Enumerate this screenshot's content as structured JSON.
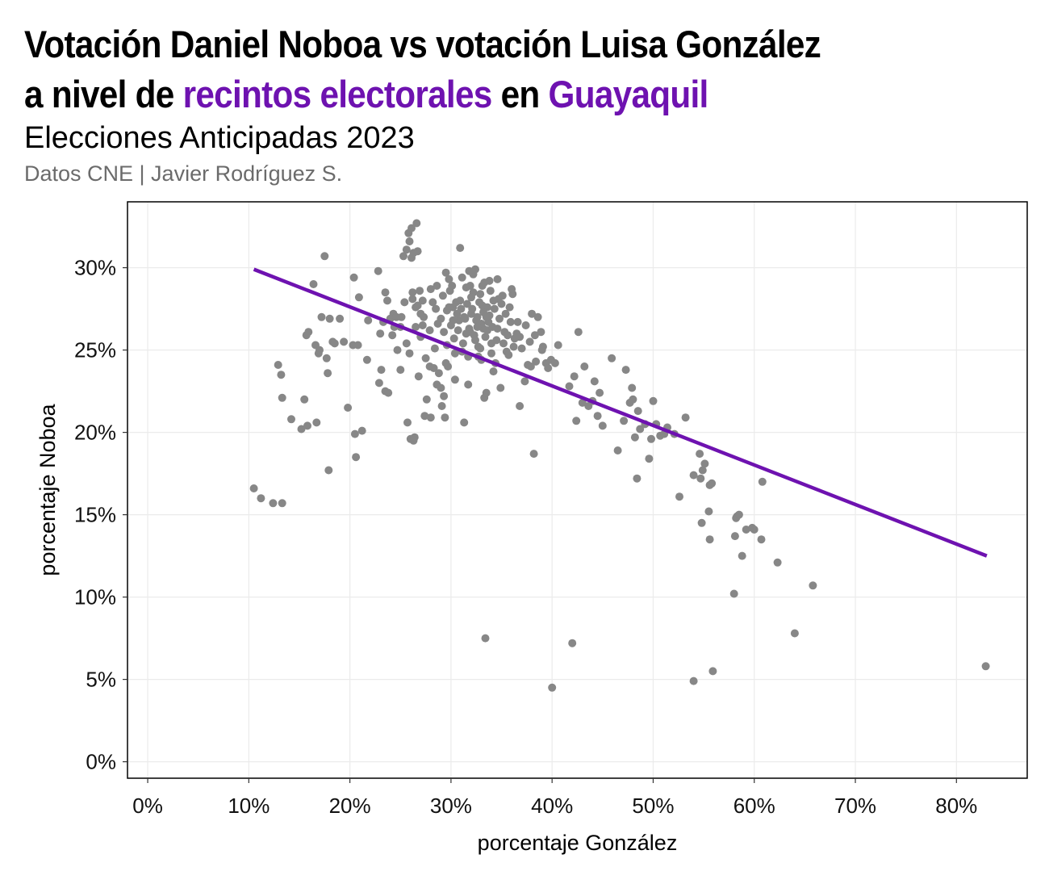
{
  "header": {
    "title_line1": "Votación Daniel Noboa vs votación Luisa González",
    "title_line2_a": "a nivel de ",
    "title_line2_b": "recintos electorales",
    "title_line2_c": " en ",
    "title_line2_d": "Guayaquil",
    "subtitle": "Elecciones Anticipadas 2023",
    "caption": "Datos CNE | Javier Rodríguez S."
  },
  "colors": {
    "accent": "#6e12b0",
    "points": "#878787",
    "grid": "#ebebeb",
    "caption": "#6b6b6b"
  },
  "chart_data": {
    "type": "scatter",
    "title": "Votación Daniel Noboa vs votación Luisa González a nivel de recintos electorales en Guayaquil",
    "subtitle": "Elecciones Anticipadas 2023",
    "xlabel": "porcentaje González",
    "ylabel": "porcentaje Noboa",
    "xlim": [
      -2,
      87
    ],
    "ylim": [
      -1,
      34
    ],
    "x_ticks": [
      0,
      10,
      20,
      30,
      40,
      50,
      60,
      70,
      80
    ],
    "y_ticks": [
      0,
      5,
      10,
      15,
      20,
      25,
      30
    ],
    "x_tick_labels": [
      "0%",
      "10%",
      "20%",
      "30%",
      "40%",
      "50%",
      "60%",
      "70%",
      "80%"
    ],
    "y_tick_labels": [
      "0%",
      "5%",
      "10%",
      "15%",
      "20%",
      "25%",
      "30%"
    ],
    "grid": true,
    "trend_line": {
      "x": [
        10.5,
        83
      ],
      "y": [
        29.9,
        12.5
      ]
    },
    "points": [
      [
        10.5,
        16.6
      ],
      [
        11.2,
        16.0
      ],
      [
        12.4,
        15.7
      ],
      [
        13.3,
        15.7
      ],
      [
        12.9,
        24.1
      ],
      [
        13.2,
        23.5
      ],
      [
        13.3,
        22.1
      ],
      [
        14.2,
        20.8
      ],
      [
        15.2,
        20.2
      ],
      [
        15.5,
        22.0
      ],
      [
        15.8,
        20.4
      ],
      [
        15.7,
        25.9
      ],
      [
        15.9,
        26.1
      ],
      [
        16.4,
        29.0
      ],
      [
        16.6,
        25.3
      ],
      [
        16.7,
        20.6
      ],
      [
        16.9,
        24.8
      ],
      [
        17.0,
        25.0
      ],
      [
        17.2,
        27.0
      ],
      [
        17.5,
        30.7
      ],
      [
        17.7,
        24.5
      ],
      [
        17.8,
        23.6
      ],
      [
        17.9,
        17.7
      ],
      [
        18.0,
        26.9
      ],
      [
        18.3,
        25.5
      ],
      [
        18.5,
        25.4
      ],
      [
        19.0,
        26.9
      ],
      [
        19.4,
        25.5
      ],
      [
        19.8,
        21.5
      ],
      [
        20.3,
        25.3
      ],
      [
        20.4,
        29.4
      ],
      [
        20.5,
        19.9
      ],
      [
        20.6,
        18.5
      ],
      [
        20.8,
        25.3
      ],
      [
        20.9,
        28.2
      ],
      [
        21.2,
        20.1
      ],
      [
        21.7,
        24.4
      ],
      [
        21.8,
        26.8
      ],
      [
        22.8,
        29.8
      ],
      [
        22.9,
        23.0
      ],
      [
        23.1,
        23.8
      ],
      [
        23.5,
        28.5
      ],
      [
        23.5,
        22.5
      ],
      [
        23.8,
        22.4
      ],
      [
        23.7,
        28.0
      ],
      [
        23.3,
        26.7
      ],
      [
        24.0,
        26.9
      ],
      [
        24.4,
        26.4
      ],
      [
        24.3,
        27.2
      ],
      [
        24.7,
        25.0
      ],
      [
        25.0,
        23.8
      ],
      [
        25.1,
        27.0
      ],
      [
        25.3,
        30.7
      ],
      [
        25.6,
        31.1
      ],
      [
        25.8,
        32.1
      ],
      [
        25.9,
        31.6
      ],
      [
        26.1,
        32.4
      ],
      [
        26.6,
        32.7
      ],
      [
        26.1,
        30.6
      ],
      [
        26.7,
        31.0
      ],
      [
        26.3,
        30.9
      ],
      [
        25.6,
        25.4
      ],
      [
        25.9,
        24.8
      ],
      [
        25.7,
        20.6
      ],
      [
        26.0,
        19.6
      ],
      [
        26.3,
        19.5
      ],
      [
        26.4,
        19.7
      ],
      [
        26.2,
        28.1
      ],
      [
        26.5,
        27.6
      ],
      [
        26.2,
        28.5
      ],
      [
        26.8,
        23.4
      ],
      [
        27.0,
        27.2
      ],
      [
        27.2,
        26.5
      ],
      [
        27.4,
        21.0
      ],
      [
        27.6,
        22.0
      ],
      [
        27.5,
        24.5
      ],
      [
        27.9,
        24.0
      ],
      [
        28.0,
        20.9
      ],
      [
        28.3,
        23.9
      ],
      [
        28.6,
        22.9
      ],
      [
        28.8,
        23.6
      ],
      [
        29.0,
        22.7
      ],
      [
        29.3,
        22.2
      ],
      [
        29.1,
        21.6
      ],
      [
        29.4,
        20.9
      ],
      [
        29.5,
        29.7
      ],
      [
        29.6,
        25.3
      ],
      [
        29.7,
        24.0
      ],
      [
        29.9,
        28.6
      ],
      [
        30.1,
        28.9
      ],
      [
        30.2,
        27.6
      ],
      [
        30.4,
        23.2
      ],
      [
        30.7,
        26.2
      ],
      [
        30.9,
        31.2
      ],
      [
        31.1,
        24.9
      ],
      [
        31.3,
        20.6
      ],
      [
        31.5,
        28.8
      ],
      [
        31.7,
        22.9
      ],
      [
        31.9,
        26.1
      ],
      [
        32.0,
        27.2
      ],
      [
        32.2,
        28.5
      ],
      [
        32.4,
        29.9
      ],
      [
        32.6,
        27.0
      ],
      [
        32.7,
        24.6
      ],
      [
        32.9,
        25.1
      ],
      [
        33.1,
        28.9
      ],
      [
        33.2,
        26.3
      ],
      [
        33.3,
        22.1
      ],
      [
        33.4,
        7.5
      ],
      [
        33.5,
        22.4
      ],
      [
        33.6,
        27.6
      ],
      [
        33.8,
        29.2
      ],
      [
        34.0,
        24.8
      ],
      [
        34.2,
        23.7
      ],
      [
        34.4,
        24.2
      ],
      [
        34.6,
        29.3
      ],
      [
        34.7,
        28.1
      ],
      [
        34.9,
        22.7
      ],
      [
        35.2,
        25.4
      ],
      [
        35.5,
        24.9
      ],
      [
        35.8,
        27.6
      ],
      [
        36.1,
        28.4
      ],
      [
        36.3,
        25.7
      ],
      [
        36.6,
        26.7
      ],
      [
        36.8,
        21.6
      ],
      [
        37.0,
        25.1
      ],
      [
        37.3,
        23.1
      ],
      [
        37.6,
        24.1
      ],
      [
        37.8,
        25.5
      ],
      [
        38.0,
        27.2
      ],
      [
        38.2,
        18.7
      ],
      [
        38.4,
        24.3
      ],
      [
        38.6,
        27.0
      ],
      [
        38.9,
        26.1
      ],
      [
        39.1,
        25.2
      ],
      [
        39.4,
        24.2
      ],
      [
        39.6,
        23.9
      ],
      [
        39.9,
        24.4
      ],
      [
        40.0,
        4.5
      ],
      [
        40.6,
        25.3
      ],
      [
        41.7,
        22.8
      ],
      [
        42.0,
        7.2
      ],
      [
        42.2,
        23.4
      ],
      [
        42.4,
        20.7
      ],
      [
        42.6,
        26.1
      ],
      [
        43.0,
        21.8
      ],
      [
        43.2,
        24.0
      ],
      [
        43.6,
        21.6
      ],
      [
        44.0,
        21.9
      ],
      [
        44.2,
        23.1
      ],
      [
        44.5,
        21.0
      ],
      [
        44.7,
        22.4
      ],
      [
        45.0,
        20.4
      ],
      [
        45.9,
        24.5
      ],
      [
        46.5,
        18.9
      ],
      [
        47.1,
        20.7
      ],
      [
        47.3,
        23.8
      ],
      [
        47.7,
        21.8
      ],
      [
        47.9,
        22.7
      ],
      [
        48.0,
        22.0
      ],
      [
        48.2,
        19.7
      ],
      [
        48.4,
        17.2
      ],
      [
        48.5,
        21.3
      ],
      [
        48.7,
        20.2
      ],
      [
        49.2,
        20.5
      ],
      [
        49.6,
        18.4
      ],
      [
        49.8,
        19.6
      ],
      [
        50.0,
        21.9
      ],
      [
        50.3,
        20.5
      ],
      [
        50.7,
        19.8
      ],
      [
        51.1,
        19.9
      ],
      [
        51.4,
        20.3
      ],
      [
        52.1,
        19.9
      ],
      [
        52.6,
        16.1
      ],
      [
        53.2,
        20.9
      ],
      [
        54.0,
        17.4
      ],
      [
        54.6,
        18.7
      ],
      [
        54.7,
        17.2
      ],
      [
        54.9,
        17.7
      ],
      [
        55.1,
        18.1
      ],
      [
        55.5,
        15.2
      ],
      [
        55.6,
        16.8
      ],
      [
        55.8,
        16.9
      ],
      [
        54.8,
        14.5
      ],
      [
        55.6,
        13.5
      ],
      [
        54.0,
        4.9
      ],
      [
        55.9,
        5.5
      ],
      [
        58.1,
        13.7
      ],
      [
        58.2,
        14.8
      ],
      [
        58.3,
        14.9
      ],
      [
        58.5,
        15.0
      ],
      [
        59.2,
        14.1
      ],
      [
        59.8,
        14.2
      ],
      [
        60.0,
        14.1
      ],
      [
        60.7,
        13.5
      ],
      [
        60.8,
        17.0
      ],
      [
        58.0,
        10.2
      ],
      [
        58.8,
        12.5
      ],
      [
        62.3,
        12.1
      ],
      [
        64.0,
        7.8
      ],
      [
        65.8,
        10.7
      ],
      [
        82.9,
        5.8
      ],
      [
        27.9,
        26.2
      ],
      [
        28.2,
        27.9
      ],
      [
        28.7,
        26.6
      ],
      [
        29.0,
        26.9
      ],
      [
        29.3,
        26.1
      ],
      [
        29.8,
        27.6
      ],
      [
        30.0,
        26.5
      ],
      [
        30.3,
        25.7
      ],
      [
        30.5,
        27.9
      ],
      [
        30.8,
        26.8
      ],
      [
        31.0,
        27.5
      ],
      [
        31.2,
        25.4
      ],
      [
        31.4,
        26.9
      ],
      [
        31.6,
        27.8
      ],
      [
        31.8,
        26.3
      ],
      [
        32.1,
        27.5
      ],
      [
        32.3,
        25.9
      ],
      [
        32.5,
        26.8
      ],
      [
        32.8,
        27.9
      ],
      [
        33.0,
        26.6
      ],
      [
        33.2,
        27.3
      ],
      [
        33.4,
        25.8
      ],
      [
        33.6,
        26.2
      ],
      [
        33.8,
        27.1
      ],
      [
        34.1,
        26.4
      ],
      [
        34.3,
        27.5
      ],
      [
        34.5,
        25.6
      ],
      [
        34.8,
        26.9
      ],
      [
        35.0,
        27.8
      ],
      [
        35.3,
        26.1
      ],
      [
        35.6,
        25.9
      ],
      [
        35.9,
        26.7
      ],
      [
        36.2,
        25.2
      ],
      [
        36.5,
        26.0
      ],
      [
        30.6,
        27.2
      ],
      [
        31.5,
        26.0
      ],
      [
        32.0,
        28.2
      ],
      [
        32.6,
        26.4
      ],
      [
        33.1,
        27.7
      ],
      [
        33.7,
        26.7
      ],
      [
        34.2,
        28.0
      ],
      [
        31.3,
        27.0
      ],
      [
        32.4,
        25.6
      ],
      [
        33.5,
        27.0
      ],
      [
        30.2,
        26.8
      ],
      [
        29.6,
        27.4
      ],
      [
        34.6,
        26.3
      ],
      [
        35.4,
        27.2
      ],
      [
        28.5,
        27.5
      ],
      [
        36.8,
        25.8
      ],
      [
        37.4,
        26.5
      ],
      [
        38.3,
        25.9
      ],
      [
        39.0,
        25.0
      ],
      [
        36.0,
        28.7
      ],
      [
        35.1,
        28.3
      ],
      [
        33.9,
        28.6
      ],
      [
        32.9,
        28.4
      ],
      [
        31.9,
        28.9
      ],
      [
        30.9,
        28.0
      ],
      [
        29.2,
        28.3
      ],
      [
        28.0,
        28.7
      ],
      [
        27.3,
        27.0
      ],
      [
        27.0,
        25.8
      ],
      [
        26.5,
        26.4
      ],
      [
        30.4,
        24.8
      ],
      [
        31.7,
        24.6
      ],
      [
        32.7,
        25.2
      ],
      [
        34.0,
        25.4
      ],
      [
        35.7,
        24.7
      ],
      [
        29.5,
        24.2
      ],
      [
        28.4,
        25.1
      ],
      [
        33.0,
        24.4
      ],
      [
        27.2,
        28.0
      ],
      [
        31.1,
        29.4
      ],
      [
        32.2,
        29.6
      ],
      [
        33.3,
        29.1
      ],
      [
        29.8,
        29.3
      ],
      [
        28.6,
        28.9
      ],
      [
        31.8,
        29.8
      ],
      [
        26.9,
        28.6
      ],
      [
        24.6,
        27.0
      ],
      [
        25.4,
        27.9
      ],
      [
        24.2,
        25.9
      ],
      [
        23.0,
        26.0
      ],
      [
        26.7,
        27.7
      ],
      [
        25.0,
        26.4
      ],
      [
        37.9,
        24.0
      ],
      [
        40.3,
        24.2
      ]
    ]
  }
}
